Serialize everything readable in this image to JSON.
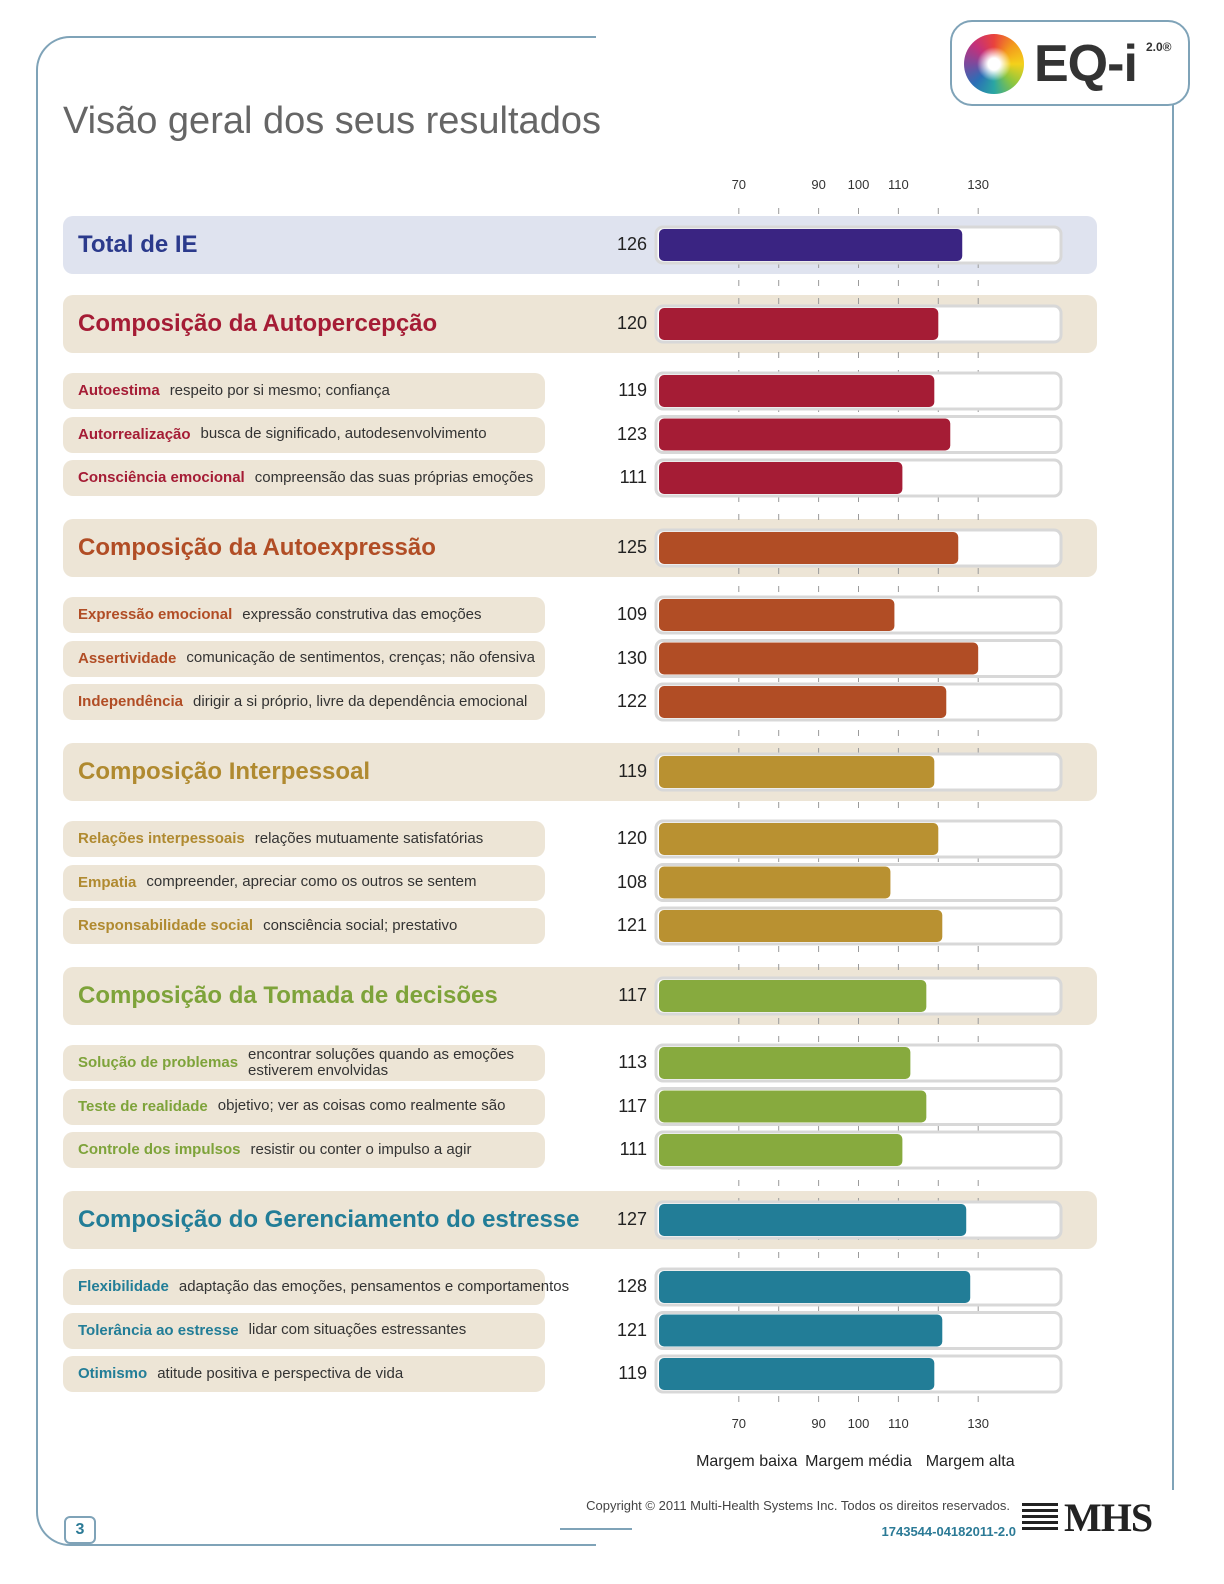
{
  "logo": {
    "text": "EQ-i",
    "version": "2.0®"
  },
  "page_title": "Visão geral dos seus resultados",
  "chart_data": {
    "type": "bar",
    "orientation": "horizontal",
    "xlim": [
      50,
      150
    ],
    "ticks": [
      70,
      90,
      100,
      110,
      130
    ],
    "minor_ticks": [
      80,
      120
    ],
    "bands": [
      "Margem baixa",
      "Margem média",
      "Margem alta"
    ],
    "rows": [
      {
        "kind": "total",
        "label": "Total de IE",
        "desc": "",
        "value": 126,
        "color": "#3a2482",
        "bg": "#dfe3ef",
        "text_color": "#2b3a8c"
      },
      {
        "kind": "composite",
        "label": "Composição da Autopercepção",
        "desc": "",
        "value": 120,
        "color": "#a51c35",
        "bg": "#ede5d6",
        "text_color": "#a51c35"
      },
      {
        "kind": "subscale",
        "label": "Autoestima",
        "desc": "respeito por si mesmo; confiança",
        "value": 119,
        "color": "#a51c35",
        "bg": "#ede5d6",
        "text_color": "#a51c35"
      },
      {
        "kind": "subscale",
        "label": "Autorrealização",
        "desc": "busca de significado, autodesenvolvimento",
        "value": 123,
        "color": "#a51c35",
        "bg": "#ede5d6",
        "text_color": "#a51c35"
      },
      {
        "kind": "subscale",
        "label": "Consciência emocional",
        "desc": "compreensão das suas próprias emoções",
        "value": 111,
        "color": "#a51c35",
        "bg": "#ede5d6",
        "text_color": "#a51c35"
      },
      {
        "kind": "composite",
        "label": "Composição da Autoexpressão",
        "desc": "",
        "value": 125,
        "color": "#b14d25",
        "bg": "#ede5d6",
        "text_color": "#b14d25"
      },
      {
        "kind": "subscale",
        "label": "Expressão emocional",
        "desc": "expressão construtiva das emoções",
        "value": 109,
        "color": "#b14d25",
        "bg": "#ede5d6",
        "text_color": "#b14d25"
      },
      {
        "kind": "subscale",
        "label": "Assertividade",
        "desc": "comunicação de sentimentos, crenças; não ofensiva",
        "value": 130,
        "color": "#b14d25",
        "bg": "#ede5d6",
        "text_color": "#b14d25"
      },
      {
        "kind": "subscale",
        "label": "Independência",
        "desc": "dirigir a si próprio, livre da dependência emocional",
        "value": 122,
        "color": "#b14d25",
        "bg": "#ede5d6",
        "text_color": "#b14d25"
      },
      {
        "kind": "composite",
        "label": "Composição Interpessoal",
        "desc": "",
        "value": 119,
        "color": "#b99131",
        "bg": "#ede5d6",
        "text_color": "#b08a30"
      },
      {
        "kind": "subscale",
        "label": "Relações interpessoais",
        "desc": "relações mutuamente satisfatórias",
        "value": 120,
        "color": "#b99131",
        "bg": "#ede5d6",
        "text_color": "#b08a30"
      },
      {
        "kind": "subscale",
        "label": "Empatia",
        "desc": "compreender, apreciar como os outros se sentem",
        "value": 108,
        "color": "#b99131",
        "bg": "#ede5d6",
        "text_color": "#b08a30"
      },
      {
        "kind": "subscale",
        "label": "Responsabilidade social",
        "desc": "consciência social; prestativo",
        "value": 121,
        "color": "#b99131",
        "bg": "#ede5d6",
        "text_color": "#b08a30"
      },
      {
        "kind": "composite",
        "label": "Composição da Tomada de decisões",
        "desc": "",
        "value": 117,
        "color": "#87aa3e",
        "bg": "#ede5d6",
        "text_color": "#7ea33a"
      },
      {
        "kind": "subscale",
        "label": "Solução de problemas",
        "desc": "encontrar soluções quando as emoções estiverem envolvidas",
        "value": 113,
        "color": "#87aa3e",
        "bg": "#ede5d6",
        "text_color": "#7ea33a"
      },
      {
        "kind": "subscale",
        "label": "Teste de realidade",
        "desc": "objetivo; ver as coisas como realmente são",
        "value": 117,
        "color": "#87aa3e",
        "bg": "#ede5d6",
        "text_color": "#7ea33a"
      },
      {
        "kind": "subscale",
        "label": "Controle dos impulsos",
        "desc": "resistir ou conter o impulso a agir",
        "value": 111,
        "color": "#87aa3e",
        "bg": "#ede5d6",
        "text_color": "#7ea33a"
      },
      {
        "kind": "composite",
        "label": "Composição do Gerenciamento do estresse",
        "desc": "",
        "value": 127,
        "color": "#227d97",
        "bg": "#ede5d6",
        "text_color": "#227d97"
      },
      {
        "kind": "subscale",
        "label": "Flexibilidade",
        "desc": "adaptação das emoções, pensamentos e comportamentos",
        "value": 128,
        "color": "#227d97",
        "bg": "#ede5d6",
        "text_color": "#227d97"
      },
      {
        "kind": "subscale",
        "label": "Tolerância ao estresse",
        "desc": "lidar com situações estressantes",
        "value": 121,
        "color": "#227d97",
        "bg": "#ede5d6",
        "text_color": "#227d97"
      },
      {
        "kind": "subscale",
        "label": "Otimismo",
        "desc": "atitude positiva e perspectiva de vida",
        "value": 119,
        "color": "#227d97",
        "bg": "#ede5d6",
        "text_color": "#227d97"
      }
    ]
  },
  "footer": {
    "copyright": "Copyright © 2011 Multi-Health Systems Inc. Todos os direitos reservados.",
    "doc_code": "1743544-04182011-2.0",
    "publisher": "MHS",
    "page_number": "3"
  }
}
